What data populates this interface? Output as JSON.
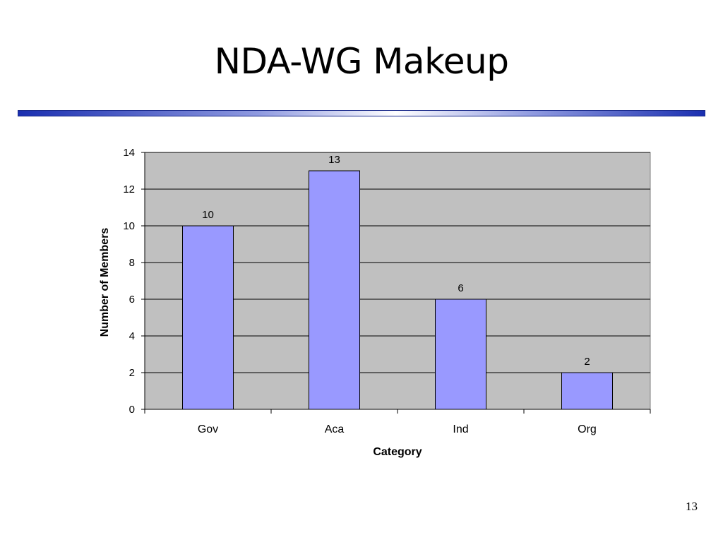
{
  "slide": {
    "title": "NDA-WG Makeup",
    "page_number": "13"
  },
  "colors": {
    "bar_fill": "#9999ff",
    "plot_background": "#c0c0c0"
  },
  "chart_data": {
    "type": "bar",
    "title": "",
    "xlabel": "Category",
    "ylabel": "Number of Members",
    "categories": [
      "Gov",
      "Aca",
      "Ind",
      "Org"
    ],
    "values": [
      10,
      13,
      6,
      2
    ],
    "data_labels": [
      "10",
      "13",
      "6",
      "2"
    ],
    "ylim": [
      0,
      14
    ],
    "yticks": [
      0,
      2,
      4,
      6,
      8,
      10,
      12,
      14
    ],
    "grid": true,
    "legend": "none"
  }
}
